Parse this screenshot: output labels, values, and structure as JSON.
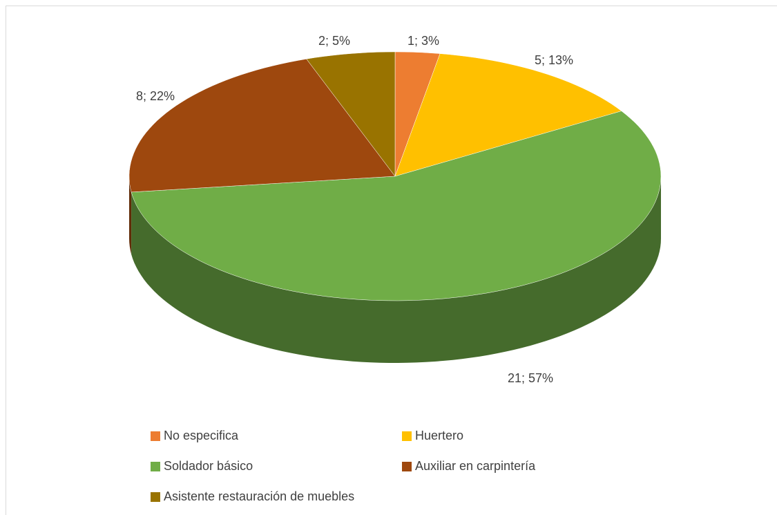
{
  "chart_data": {
    "type": "pie",
    "categories": [
      "No especifica",
      "Huertero",
      "Soldador básico",
      "Auxiliar en carpintería",
      "Asistente restauración de muebles"
    ],
    "values": [
      1,
      5,
      21,
      8,
      2
    ],
    "value_labels": [
      "1; 3%",
      "5; 13%",
      "21; 57%",
      "8; 22%",
      "2; 5%"
    ],
    "colors": [
      "#ed7d31",
      "#ffc000",
      "#70ad47",
      "#9e480e",
      "#997300"
    ],
    "legend": "bottom"
  }
}
